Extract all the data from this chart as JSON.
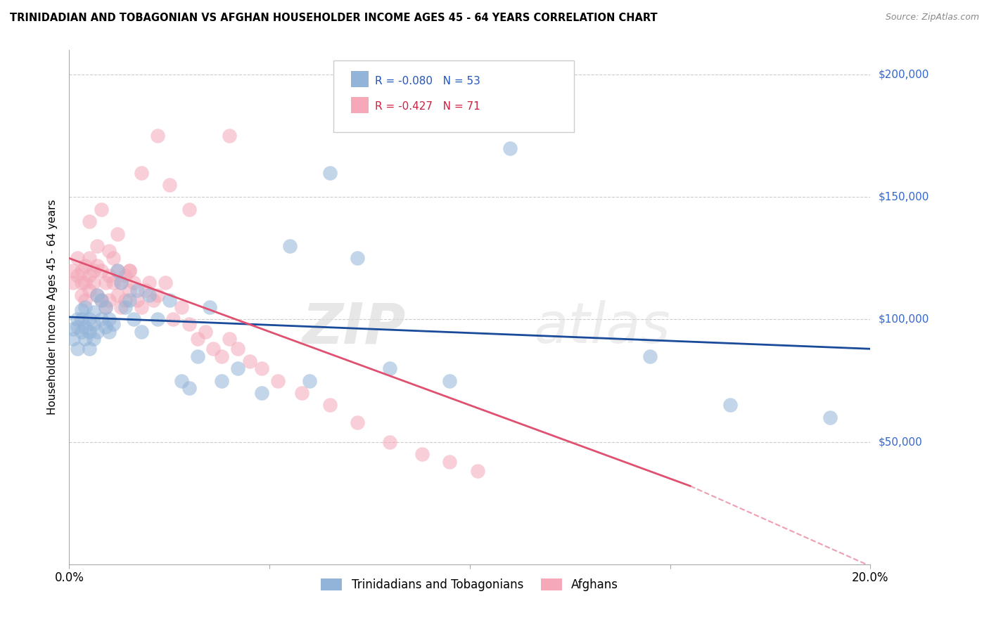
{
  "title": "TRINIDADIAN AND TOBAGONIAN VS AFGHAN HOUSEHOLDER INCOME AGES 45 - 64 YEARS CORRELATION CHART",
  "source": "Source: ZipAtlas.com",
  "ylabel": "Householder Income Ages 45 - 64 years",
  "xlim": [
    0.0,
    0.2
  ],
  "ylim": [
    0,
    210000
  ],
  "xticks": [
    0.0,
    0.05,
    0.1,
    0.15,
    0.2
  ],
  "xticklabels": [
    "0.0%",
    "",
    "",
    "",
    "20.0%"
  ],
  "ytick_positions": [
    0,
    50000,
    100000,
    150000,
    200000
  ],
  "ytick_labels": [
    "",
    "$50,000",
    "$100,000",
    "$150,000",
    "$200,000"
  ],
  "legend_blue_r": "R = -0.080",
  "legend_blue_n": "N = 53",
  "legend_pink_r": "R = -0.427",
  "legend_pink_n": "N = 71",
  "blue_color": "#92B4D8",
  "pink_color": "#F4A8B8",
  "blue_line_color": "#1A4A9A",
  "pink_line_color": "#E05070",
  "blue_legend_color": "#92B4D8",
  "pink_legend_color": "#F4A8B8",
  "watermark_zip": "ZIP",
  "watermark_atlas": "atlas",
  "blue_scatter_x": [
    0.001,
    0.001,
    0.002,
    0.002,
    0.002,
    0.003,
    0.003,
    0.003,
    0.004,
    0.004,
    0.004,
    0.005,
    0.005,
    0.005,
    0.006,
    0.006,
    0.006,
    0.007,
    0.007,
    0.008,
    0.008,
    0.009,
    0.009,
    0.01,
    0.01,
    0.011,
    0.012,
    0.013,
    0.014,
    0.015,
    0.016,
    0.017,
    0.018,
    0.02,
    0.022,
    0.025,
    0.028,
    0.03,
    0.032,
    0.035,
    0.038,
    0.042,
    0.048,
    0.055,
    0.06,
    0.065,
    0.072,
    0.08,
    0.095,
    0.11,
    0.145,
    0.165,
    0.19
  ],
  "blue_scatter_y": [
    96000,
    92000,
    100000,
    97000,
    88000,
    95000,
    100000,
    104000,
    92000,
    97000,
    105000,
    95000,
    100000,
    88000,
    103000,
    98000,
    92000,
    110000,
    95000,
    108000,
    100000,
    97000,
    105000,
    95000,
    100000,
    98000,
    120000,
    115000,
    105000,
    108000,
    100000,
    112000,
    95000,
    110000,
    100000,
    108000,
    75000,
    72000,
    85000,
    105000,
    75000,
    80000,
    70000,
    130000,
    75000,
    160000,
    125000,
    80000,
    75000,
    170000,
    85000,
    65000,
    60000
  ],
  "pink_scatter_x": [
    0.001,
    0.001,
    0.002,
    0.002,
    0.003,
    0.003,
    0.003,
    0.004,
    0.004,
    0.004,
    0.005,
    0.005,
    0.005,
    0.006,
    0.006,
    0.007,
    0.007,
    0.007,
    0.008,
    0.008,
    0.009,
    0.009,
    0.01,
    0.01,
    0.011,
    0.011,
    0.012,
    0.012,
    0.013,
    0.013,
    0.014,
    0.014,
    0.015,
    0.015,
    0.016,
    0.017,
    0.018,
    0.019,
    0.02,
    0.021,
    0.022,
    0.024,
    0.026,
    0.028,
    0.03,
    0.032,
    0.034,
    0.036,
    0.038,
    0.04,
    0.042,
    0.045,
    0.048,
    0.052,
    0.058,
    0.065,
    0.072,
    0.08,
    0.088,
    0.095,
    0.102,
    0.022,
    0.04,
    0.018,
    0.025,
    0.008,
    0.005,
    0.03,
    0.012,
    0.01,
    0.015
  ],
  "pink_scatter_y": [
    120000,
    115000,
    118000,
    125000,
    115000,
    120000,
    110000,
    122000,
    115000,
    108000,
    118000,
    112000,
    125000,
    115000,
    120000,
    130000,
    110000,
    122000,
    108000,
    120000,
    115000,
    105000,
    118000,
    108000,
    115000,
    125000,
    110000,
    120000,
    115000,
    105000,
    118000,
    108000,
    120000,
    112000,
    115000,
    108000,
    105000,
    112000,
    115000,
    108000,
    110000,
    115000,
    100000,
    105000,
    98000,
    92000,
    95000,
    88000,
    85000,
    92000,
    88000,
    83000,
    80000,
    75000,
    70000,
    65000,
    58000,
    50000,
    45000,
    42000,
    38000,
    175000,
    175000,
    160000,
    155000,
    145000,
    140000,
    145000,
    135000,
    128000,
    120000
  ]
}
